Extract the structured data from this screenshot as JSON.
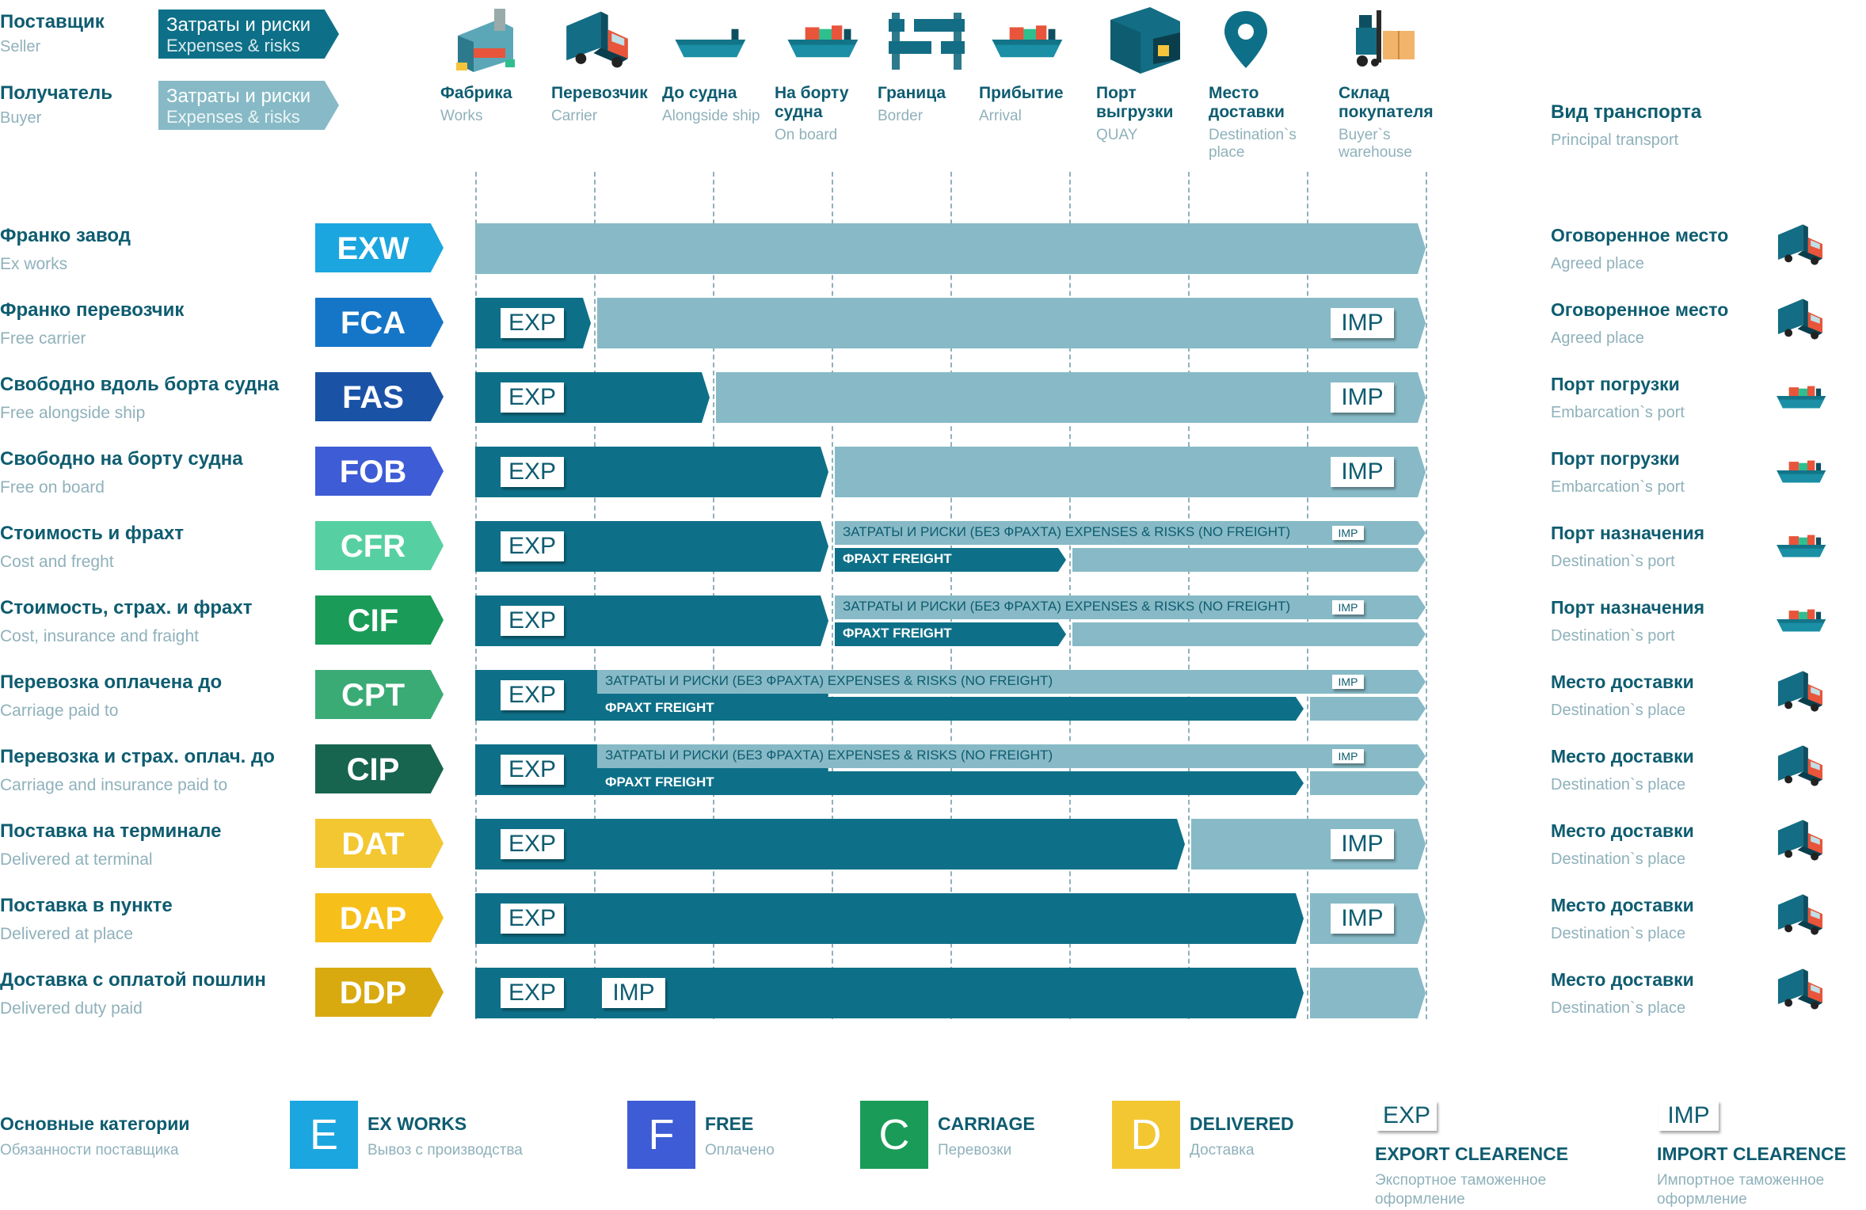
{
  "header": {
    "seller": {
      "title": "Поставщик",
      "sub": "Seller"
    },
    "buyer": {
      "title": "Получатель",
      "sub": "Buyer"
    },
    "seller_badge": {
      "line1": "Затраты и риски",
      "line2": "Expenses & risks"
    },
    "buyer_badge": {
      "line1": "Затраты и риски",
      "line2": "Expenses & risks"
    },
    "transport": {
      "title": "Вид транспорта",
      "sub": "Principal transport"
    }
  },
  "stages": [
    {
      "title": "Фабрика",
      "sub": "Works",
      "icon": "factory-icon"
    },
    {
      "title": "Перевозчик",
      "sub": "Carrier",
      "icon": "truck-icon"
    },
    {
      "title": "До судна",
      "sub": "Alongside ship",
      "icon": "empty-ship-icon"
    },
    {
      "title": "На борту судна",
      "sub": "On board",
      "icon": "loaded-ship-icon"
    },
    {
      "title": "Граница",
      "sub": "Border",
      "icon": "barrier-icon"
    },
    {
      "title": "Прибытие",
      "sub": "Arrival",
      "icon": "arriving-ship-icon"
    },
    {
      "title": "Порт выгрузки",
      "sub": "QUAY",
      "icon": "container-icon"
    },
    {
      "title": "Место доставки",
      "sub": "Destination`s place",
      "icon": "location-pin-icon"
    },
    {
      "title": "Склад покупателя",
      "sub": "Buyer`s warehouse",
      "icon": "forklift-icon"
    }
  ],
  "labels": {
    "exp": "EXP",
    "imp": "IMP",
    "costs_no_freight": "ЗАТРАТЫ И РИСКИ (БЕЗ ФРАХТА) EXPENSES & RISKS (NO FREIGHT)",
    "freight": "ФРАХТ FREIGHT"
  },
  "terms": [
    {
      "code": "EXW",
      "ru": "Франко завод",
      "en": "Ex works",
      "place": "Оговоренное место",
      "place_en": "Agreed place",
      "color": "#1ba6df",
      "transport": "truck-icon"
    },
    {
      "code": "FCA",
      "ru": "Франко перевозчик",
      "en": "Free carrier",
      "place": "Оговоренное место",
      "place_en": "Agreed place",
      "color": "#1576c8",
      "transport": "truck-icon"
    },
    {
      "code": "FAS",
      "ru": "Свободно вдоль борта судна",
      "en": "Free alongside ship",
      "place": "Порт погрузки",
      "place_en": "Embarcation`s port",
      "color": "#1a52a6",
      "transport": "ship-icon"
    },
    {
      "code": "FOB",
      "ru": "Свободно на борту судна",
      "en": "Free on board",
      "place": "Порт погрузки",
      "place_en": "Embarcation`s port",
      "color": "#3d5cd6",
      "transport": "ship-icon"
    },
    {
      "code": "CFR",
      "ru": "Стоимость и фрахт",
      "en": "Cost and freght",
      "place": "Порт назначения",
      "place_en": "Destination`s port",
      "color": "#56d0a2",
      "transport": "ship-icon"
    },
    {
      "code": "CIF",
      "ru": "Стоимость, страх. и фрахт",
      "en": "Cost, insurance and fraight",
      "place": "Порт назначения",
      "place_en": "Destination`s port",
      "color": "#1a9c58",
      "transport": "ship-icon"
    },
    {
      "code": "CPT",
      "ru": "Перевозка оплачена до",
      "en": "Carriage paid to",
      "place": "Место доставки",
      "place_en": "Destination`s place",
      "color": "#3bab76",
      "transport": "truck-icon"
    },
    {
      "code": "CIP",
      "ru": "Перевозка и страх. оплач. до",
      "en": "Carriage and insurance paid to",
      "place": "Место доставки",
      "place_en": "Destination`s place",
      "color": "#17644f",
      "transport": "truck-icon"
    },
    {
      "code": "DAT",
      "ru": "Поставка на терминале",
      "en": "Delivered at terminal",
      "place": "Место доставки",
      "place_en": "Destination`s place",
      "color": "#f2c732",
      "transport": "truck-icon"
    },
    {
      "code": "DAP",
      "ru": "Поставка в пункте",
      "en": "Delivered at place",
      "place": "Место доставки",
      "place_en": "Destination`s place",
      "color": "#f6bf1a",
      "transport": "truck-icon"
    },
    {
      "code": "DDP",
      "ru": "Доставка с оплатой пошлин",
      "en": "Delivered duty paid",
      "place": "Место доставки",
      "place_en": "Destination`s place",
      "color": "#d8aa10",
      "transport": "truck-icon"
    }
  ],
  "legend": {
    "title": "Основные категории",
    "sub": "Обязанности поставщика",
    "categories": [
      {
        "letter": "E",
        "title": "EX WORKS",
        "sub": "Вывоз с производства",
        "color": "#1ba6df"
      },
      {
        "letter": "F",
        "title": "FREE",
        "sub": "Оплачено",
        "color": "#3d5cd6"
      },
      {
        "letter": "C",
        "title": "CARRIAGE",
        "sub": "Перевозки",
        "color": "#1a9c58"
      },
      {
        "letter": "D",
        "title": "DELIVERED",
        "sub": "Доставка",
        "color": "#f2c732"
      }
    ],
    "exp": {
      "tag": "EXP",
      "title": "EXPORT CLEARENCE",
      "sub1": "Экспортное таможенное",
      "sub2": "оформление"
    },
    "imp": {
      "tag": "IMP",
      "title": "IMPORT CLEARENCE",
      "sub1": "Импортное таможенное",
      "sub2": "оформление"
    }
  },
  "colors": {
    "seller": "#0e7088",
    "buyer": "#87bac6",
    "text": "#0e5c70",
    "muted": "#8fb1bb"
  }
}
